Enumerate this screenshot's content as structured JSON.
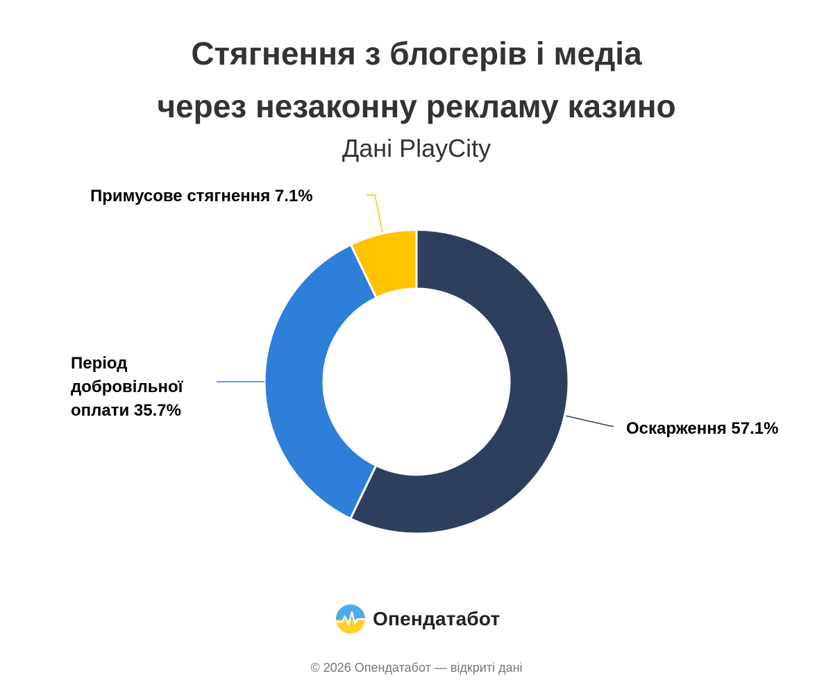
{
  "chart_data": {
    "type": "pie",
    "title": "Стягнення з блогерів і медіа через незаконну рекламу казино",
    "title_lines": [
      "Стягнення з блогерів і медіа",
      "через незаконну рекламу казино"
    ],
    "subtitle": "Дані PlayCity",
    "donut": true,
    "slices": [
      {
        "label_lines": [
          "Оскарження 57.1%"
        ],
        "value": 57.1,
        "color": "#2E3F5E"
      },
      {
        "label_lines": [
          "Період",
          "добровільної",
          "оплати 35.7%"
        ],
        "value": 35.7,
        "color": "#2E7FD9"
      },
      {
        "label_lines": [
          "Примусове стягнення 7.1%"
        ],
        "value": 7.1,
        "color": "#FFC300"
      }
    ]
  },
  "brand": {
    "name": "Опендатабот",
    "logo_icon": "opendatabot-logo-icon"
  },
  "footer": {
    "text": "© 2026 Опендатабот — відкриті дані"
  }
}
